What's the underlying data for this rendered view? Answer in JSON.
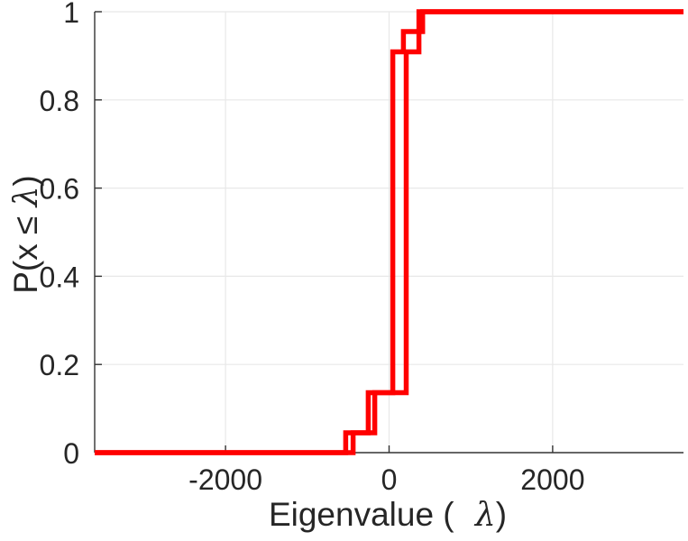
{
  "chart_data": {
    "type": "line",
    "subtype": "empirical-cdf-stairs",
    "title": "",
    "xlabel_parts": {
      "prefix": "Eigenvalue ( ",
      "lambda": "λ",
      "suffix": ")"
    },
    "ylabel_parts": {
      "prefix": "P(x ≤ ",
      "lambda": "λ",
      "suffix": ")"
    },
    "xlim": [
      -3600,
      3600
    ],
    "ylim": [
      0,
      1
    ],
    "x_ticks": [
      -2000,
      0,
      2000
    ],
    "x_tick_labels": [
      "-2000",
      "0",
      "2000"
    ],
    "y_ticks": [
      0,
      0.2,
      0.4,
      0.6,
      0.8,
      1
    ],
    "y_tick_labels": [
      "0",
      "0.2",
      "0.4",
      "0.6",
      "0.8",
      "1"
    ],
    "grid": true,
    "legend": null,
    "line_color": "#ff0000",
    "line_width": 5.5,
    "series": [
      {
        "name": "ecdf-stairs-1",
        "jump_x": [
          -530,
          -255,
          45,
          175,
          365
        ],
        "jump_y": [
          0.045,
          0.136,
          0.909,
          0.955,
          1.0
        ]
      },
      {
        "name": "ecdf-stairs-2",
        "jump_x": [
          -440,
          -175,
          210,
          365,
          410
        ],
        "jump_y": [
          0.045,
          0.136,
          0.909,
          0.955,
          1.0
        ]
      }
    ]
  },
  "axes": {
    "spine_color": "#333333",
    "grid_color": "#e8e8e8",
    "text_color": "#262626",
    "tick_length": 8
  }
}
